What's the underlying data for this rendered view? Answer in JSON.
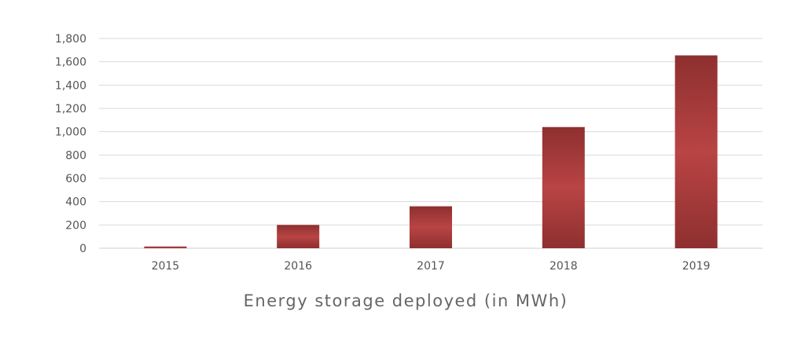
{
  "chart_data": {
    "type": "bar",
    "categories": [
      "2015",
      "2016",
      "2017",
      "2018",
      "2019"
    ],
    "values": [
      15,
      200,
      360,
      1040,
      1655
    ],
    "title": "",
    "xlabel": "Energy storage deployed (in MWh)",
    "ylabel": "",
    "ylim": [
      0,
      1800
    ],
    "yticks": [
      0,
      200,
      400,
      600,
      800,
      1000,
      1200,
      1400,
      1600,
      1800
    ],
    "ytick_labels": [
      "0",
      "200",
      "400",
      "600",
      "800",
      "1,000",
      "1,200",
      "1,400",
      "1,600",
      "1,800"
    ],
    "grid": true,
    "legend": "none",
    "colors": {
      "bar_edge": "#8e2f2f",
      "bar_center": "#b94444",
      "grid": "#d9d9d9",
      "text": "#555555"
    }
  }
}
